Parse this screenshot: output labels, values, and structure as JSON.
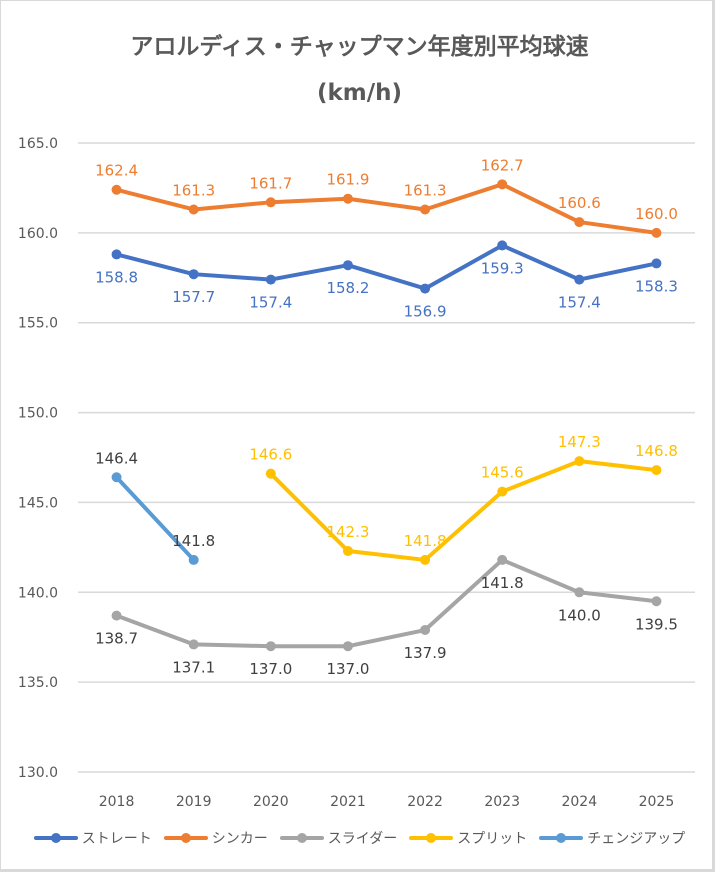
{
  "chart_data": {
    "type": "line",
    "title": "アロルディス・チャップマン年度別平均球速",
    "subtitle": "(km/h)",
    "xlabel": "",
    "ylabel": "",
    "categories": [
      "2018",
      "2019",
      "2020",
      "2021",
      "2022",
      "2023",
      "2024",
      "2025"
    ],
    "ylim": [
      130,
      165
    ],
    "yticks": [
      130,
      135,
      140,
      145,
      150,
      155,
      160,
      165
    ],
    "ytick_labels": [
      "130.0",
      "135.0",
      "140.0",
      "145.0",
      "150.0",
      "155.0",
      "160.0",
      "165.0"
    ],
    "grid": true,
    "legend_position": "bottom",
    "series": [
      {
        "name": "ストレート",
        "color": "#4472c4",
        "label_position": "below",
        "values": [
          158.8,
          157.7,
          157.4,
          158.2,
          156.9,
          159.3,
          157.4,
          158.3
        ],
        "labels": [
          "158.8",
          "157.7",
          "157.4",
          "158.2",
          "156.9",
          "159.3",
          "157.4",
          "158.3"
        ]
      },
      {
        "name": "シンカー",
        "color": "#ed7d31",
        "label_position": "above",
        "values": [
          162.4,
          161.3,
          161.7,
          161.9,
          161.3,
          162.7,
          160.6,
          160.0
        ],
        "labels": [
          "162.4",
          "161.3",
          "161.7",
          "161.9",
          "161.3",
          "162.7",
          "160.6",
          "160.0"
        ]
      },
      {
        "name": "スライダー",
        "color": "#a5a5a5",
        "label_color": "#404040",
        "label_position": "below",
        "values": [
          138.7,
          137.1,
          137.0,
          137.0,
          137.9,
          141.8,
          140.0,
          139.5
        ],
        "labels": [
          "138.7",
          "137.1",
          "137.0",
          "137.0",
          "137.9",
          "141.8",
          "140.0",
          "139.5"
        ]
      },
      {
        "name": "スプリット",
        "color": "#ffc000",
        "label_position": "above",
        "values": [
          null,
          null,
          146.6,
          142.3,
          141.8,
          145.6,
          147.3,
          146.8
        ],
        "labels": [
          null,
          null,
          "146.6",
          "142.3",
          "141.8",
          "145.6",
          "147.3",
          "146.8"
        ]
      },
      {
        "name": "チェンジアップ",
        "color": "#5b9bd5",
        "label_color": "#404040",
        "label_position": "above",
        "values": [
          146.4,
          141.8,
          null,
          null,
          null,
          null,
          null,
          null
        ],
        "labels": [
          "146.4",
          "141.8",
          null,
          null,
          null,
          null,
          null,
          null
        ]
      }
    ]
  }
}
